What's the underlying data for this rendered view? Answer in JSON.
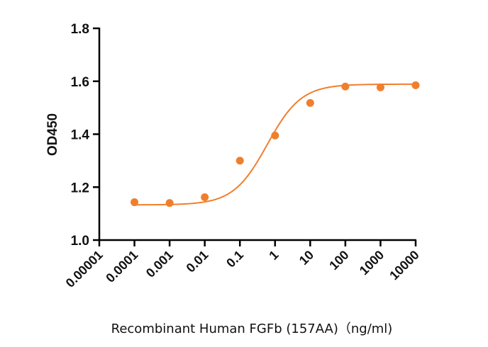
{
  "chart_data": {
    "type": "scatter",
    "title": "",
    "xlabel": "Recombinant Human FGFb (157AA)（ng/ml)",
    "ylabel": "OD450",
    "x_scale": "log",
    "xlim": [
      1e-05,
      10000
    ],
    "ylim": [
      1.0,
      1.8
    ],
    "x_ticks": [
      1e-05,
      0.0001,
      0.001,
      0.01,
      0.1,
      1,
      10,
      100,
      1000,
      10000
    ],
    "x_tick_labels": [
      "0.00001",
      "0.0001",
      "0.001",
      "0.01",
      "0.1",
      "1",
      "10",
      "100",
      "1000",
      "10000"
    ],
    "y_ticks": [
      1.0,
      1.2,
      1.4,
      1.6,
      1.8
    ],
    "y_tick_labels": [
      "1.0",
      "1.2",
      "1.4",
      "1.6",
      "1.8"
    ],
    "grid": false,
    "series": [
      {
        "x": [
          0.0001,
          0.001,
          0.01,
          0.1,
          1,
          10,
          100,
          1000,
          10000
        ],
        "y": [
          1.143,
          1.14,
          1.162,
          1.3,
          1.395,
          1.518,
          1.58,
          1.577,
          1.585
        ],
        "color": "#F07F2C",
        "fit": {
          "model": "4PL",
          "bottom": 1.133,
          "top": 1.589,
          "ec50": 0.6,
          "hill": 0.9
        }
      }
    ]
  }
}
